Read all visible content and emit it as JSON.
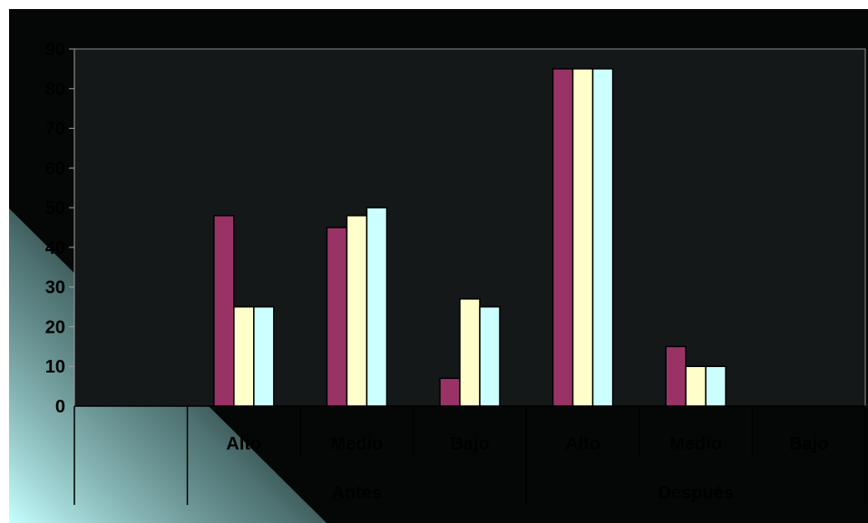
{
  "chart_data": {
    "type": "bar",
    "title": "",
    "xlabel": "",
    "ylabel": "",
    "ylim": [
      0,
      90
    ],
    "yticks": [
      0,
      10,
      20,
      30,
      40,
      50,
      60,
      70,
      80,
      90
    ],
    "grid": false,
    "legend": "none",
    "groups": [
      {
        "label": "Antes",
        "categories": [
          "Alto",
          "Medio",
          "Bajo"
        ]
      },
      {
        "label": "Después",
        "categories": [
          "Alto",
          "Medio",
          "Bajo"
        ]
      }
    ],
    "categories": [
      "Alto",
      "Medio",
      "Bajo",
      "Alto",
      "Medio",
      "Bajo"
    ],
    "series": [
      {
        "color": "#993366",
        "values": [
          48,
          45,
          7,
          85,
          15,
          0
        ]
      },
      {
        "color": "#FFFFCC",
        "values": [
          25,
          48,
          27,
          85,
          10,
          0
        ]
      },
      {
        "color": "#CCFFFF",
        "values": [
          25,
          50,
          25,
          85,
          10,
          0
        ]
      }
    ],
    "plot_background": "#141818",
    "outer_background": "#050707",
    "highlight_color": "#c6ffff"
  }
}
